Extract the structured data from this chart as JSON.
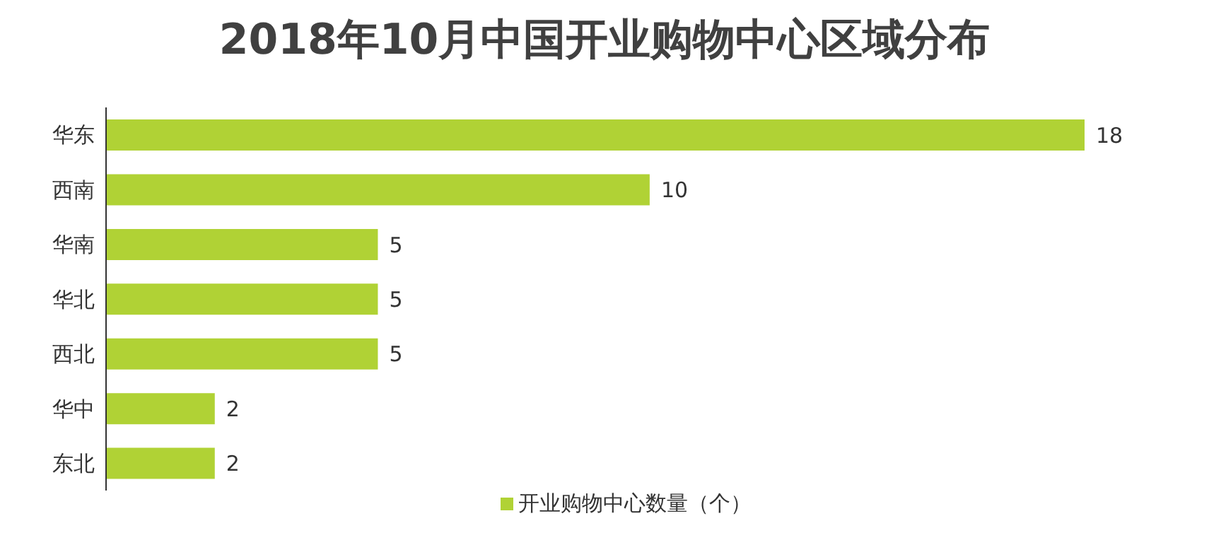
{
  "chart_data": {
    "type": "bar",
    "orientation": "horizontal",
    "title": "2018年10月中国开业购物中心区域分布",
    "categories": [
      "华东",
      "西南",
      "华南",
      "华北",
      "西北",
      "华中",
      "东北"
    ],
    "series": [
      {
        "name": "开业购物中心数量（个）",
        "color": "#b0d235",
        "values": [
          18,
          10,
          5,
          5,
          5,
          2,
          2
        ]
      }
    ],
    "data_labels": true,
    "legend": "bottom",
    "grid": false
  }
}
